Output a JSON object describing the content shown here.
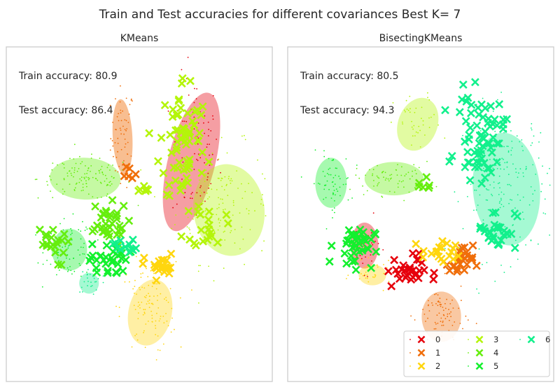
{
  "figure_title": "Train and Test accuracies for different covariances Best K= 7",
  "cluster_colors": [
    "#e6000c",
    "#f06e0a",
    "#ffd60f",
    "#b4f50a",
    "#66ee0e",
    "#14f02e",
    "#12f08c"
  ],
  "chart_data": [
    {
      "type": "scatter",
      "title": "KMeans",
      "train_accuracy_label": "Train accuracy: 80.9",
      "test_accuracy_label": "Test accuracy: 86.4",
      "grid": false,
      "axes_ticks": "none",
      "legend": null,
      "ellipses": [
        {
          "cluster": 1,
          "cx": 0.29,
          "cy": 0.62,
          "rx": 0.05,
          "ry": 0.18,
          "angle": -3,
          "opacity": 0.45
        },
        {
          "cluster": 0,
          "cx": 0.64,
          "cy": 0.5,
          "rx": 0.12,
          "ry": 0.34,
          "angle": 14,
          "opacity": 0.38
        },
        {
          "cluster": 3,
          "cx": 0.83,
          "cy": 0.27,
          "rx": 0.18,
          "ry": 0.22,
          "angle": -8,
          "opacity": 0.38
        },
        {
          "cluster": 4,
          "cx": 0.1,
          "cy": 0.42,
          "rx": 0.18,
          "ry": 0.1,
          "angle": 2,
          "opacity": 0.38
        },
        {
          "cluster": 5,
          "cx": 0.02,
          "cy": 0.08,
          "rx": 0.09,
          "ry": 0.1,
          "angle": 0,
          "opacity": 0.38
        },
        {
          "cluster": 6,
          "cx": 0.12,
          "cy": -0.08,
          "rx": 0.05,
          "ry": 0.05,
          "angle": 0,
          "opacity": 0.38
        },
        {
          "cluster": 2,
          "cx": 0.43,
          "cy": -0.22,
          "rx": 0.11,
          "ry": 0.16,
          "angle": 12,
          "opacity": 0.38
        }
      ],
      "train_points": [
        {
          "cluster": 1,
          "cx": 0.29,
          "cy": 0.62,
          "sx": 0.03,
          "sy": 0.12,
          "n": 60
        },
        {
          "cluster": 0,
          "cx": 0.66,
          "cy": 0.55,
          "sx": 0.06,
          "sy": 0.18,
          "n": 90
        },
        {
          "cluster": 3,
          "cx": 0.8,
          "cy": 0.3,
          "sx": 0.12,
          "sy": 0.14,
          "n": 140
        },
        {
          "cluster": 4,
          "cx": 0.1,
          "cy": 0.42,
          "sx": 0.12,
          "sy": 0.05,
          "n": 120
        },
        {
          "cluster": 5,
          "cx": 0.02,
          "cy": 0.08,
          "sx": 0.06,
          "sy": 0.07,
          "n": 80
        },
        {
          "cluster": 6,
          "cx": 0.14,
          "cy": -0.06,
          "sx": 0.04,
          "sy": 0.03,
          "n": 30
        },
        {
          "cluster": 2,
          "cx": 0.42,
          "cy": -0.2,
          "sx": 0.07,
          "sy": 0.11,
          "n": 110
        }
      ],
      "test_points": [
        {
          "cluster": 3,
          "cx": 0.6,
          "cy": 0.6,
          "sx": 0.06,
          "sy": 0.16,
          "n": 70
        },
        {
          "cluster": 3,
          "cx": 0.73,
          "cy": 0.2,
          "sx": 0.04,
          "sy": 0.06,
          "n": 20
        },
        {
          "cluster": 3,
          "cx": 0.4,
          "cy": 0.38,
          "sx": 0.02,
          "sy": 0.01,
          "n": 6
        },
        {
          "cluster": 1,
          "cx": 0.32,
          "cy": 0.45,
          "sx": 0.02,
          "sy": 0.02,
          "n": 6
        },
        {
          "cluster": 4,
          "cx": 0.2,
          "cy": 0.2,
          "sx": 0.06,
          "sy": 0.05,
          "n": 35
        },
        {
          "cluster": 4,
          "cx": -0.08,
          "cy": 0.1,
          "sx": 0.04,
          "sy": 0.05,
          "n": 20
        },
        {
          "cluster": 5,
          "cx": 0.22,
          "cy": 0.03,
          "sx": 0.05,
          "sy": 0.04,
          "n": 30
        },
        {
          "cluster": 6,
          "cx": 0.3,
          "cy": 0.1,
          "sx": 0.03,
          "sy": 0.02,
          "n": 12
        },
        {
          "cluster": 2,
          "cx": 0.48,
          "cy": 0.0,
          "sx": 0.04,
          "sy": 0.03,
          "n": 24
        }
      ]
    },
    {
      "type": "scatter",
      "title": "BisectingKMeans",
      "train_accuracy_label": "Train accuracy: 80.5",
      "test_accuracy_label": "Test accuracy: 94.3",
      "grid": false,
      "axes_ticks": "none",
      "legend": {
        "position": "lower-right",
        "columns": 3,
        "entries": [
          {
            "cluster": 0,
            "label": "0"
          },
          {
            "cluster": 1,
            "label": "1"
          },
          {
            "cluster": 2,
            "label": "2"
          },
          {
            "cluster": 3,
            "label": "3"
          },
          {
            "cluster": 4,
            "label": "4"
          },
          {
            "cluster": 5,
            "label": "5"
          },
          {
            "cluster": 6,
            "label": "6"
          }
        ]
      },
      "ellipses": [
        {
          "cluster": 3,
          "cx": 0.36,
          "cy": 0.68,
          "rx": 0.1,
          "ry": 0.13,
          "angle": 20,
          "opacity": 0.38
        },
        {
          "cluster": 4,
          "cx": 0.24,
          "cy": 0.42,
          "rx": 0.15,
          "ry": 0.08,
          "angle": 0,
          "opacity": 0.38
        },
        {
          "cluster": 5,
          "cx": -0.08,
          "cy": 0.4,
          "rx": 0.08,
          "ry": 0.12,
          "angle": 0,
          "opacity": 0.38
        },
        {
          "cluster": 6,
          "cx": 0.81,
          "cy": 0.37,
          "rx": 0.17,
          "ry": 0.27,
          "angle": -5,
          "opacity": 0.38
        },
        {
          "cluster": 0,
          "cx": 0.09,
          "cy": 0.1,
          "rx": 0.07,
          "ry": 0.11,
          "angle": 0,
          "opacity": 0.38
        },
        {
          "cluster": 2,
          "cx": 0.13,
          "cy": -0.04,
          "rx": 0.07,
          "ry": 0.05,
          "angle": 0,
          "opacity": 0.38
        },
        {
          "cluster": 1,
          "cx": 0.48,
          "cy": -0.24,
          "rx": 0.1,
          "ry": 0.12,
          "angle": 0,
          "opacity": 0.38
        }
      ],
      "train_points": [
        {
          "cluster": 3,
          "cx": 0.36,
          "cy": 0.68,
          "sx": 0.06,
          "sy": 0.07,
          "n": 40
        },
        {
          "cluster": 4,
          "cx": 0.24,
          "cy": 0.42,
          "sx": 0.1,
          "sy": 0.04,
          "n": 70
        },
        {
          "cluster": 5,
          "cx": -0.08,
          "cy": 0.4,
          "sx": 0.05,
          "sy": 0.07,
          "n": 60
        },
        {
          "cluster": 6,
          "cx": 0.81,
          "cy": 0.4,
          "sx": 0.11,
          "sy": 0.18,
          "n": 190
        },
        {
          "cluster": 0,
          "cx": 0.09,
          "cy": 0.1,
          "sx": 0.04,
          "sy": 0.06,
          "n": 40
        },
        {
          "cluster": 2,
          "cx": 0.13,
          "cy": -0.04,
          "sx": 0.05,
          "sy": 0.03,
          "n": 30
        },
        {
          "cluster": 1,
          "cx": 0.48,
          "cy": -0.24,
          "sx": 0.06,
          "sy": 0.08,
          "n": 80
        }
      ],
      "test_points": [
        {
          "cluster": 6,
          "cx": 0.68,
          "cy": 0.62,
          "sx": 0.06,
          "sy": 0.1,
          "n": 70
        },
        {
          "cluster": 6,
          "cx": 0.76,
          "cy": 0.18,
          "sx": 0.05,
          "sy": 0.05,
          "n": 30
        },
        {
          "cluster": 5,
          "cx": 0.04,
          "cy": 0.1,
          "sx": 0.05,
          "sy": 0.05,
          "n": 40
        },
        {
          "cluster": 0,
          "cx": 0.3,
          "cy": -0.02,
          "sx": 0.05,
          "sy": 0.04,
          "n": 30
        },
        {
          "cluster": 1,
          "cx": 0.58,
          "cy": 0.02,
          "sx": 0.03,
          "sy": 0.04,
          "n": 25
        },
        {
          "cluster": 2,
          "cx": 0.48,
          "cy": 0.06,
          "sx": 0.05,
          "sy": 0.03,
          "n": 20
        },
        {
          "cluster": 4,
          "cx": 0.4,
          "cy": 0.4,
          "sx": 0.03,
          "sy": 0.02,
          "n": 6
        }
      ]
    }
  ]
}
